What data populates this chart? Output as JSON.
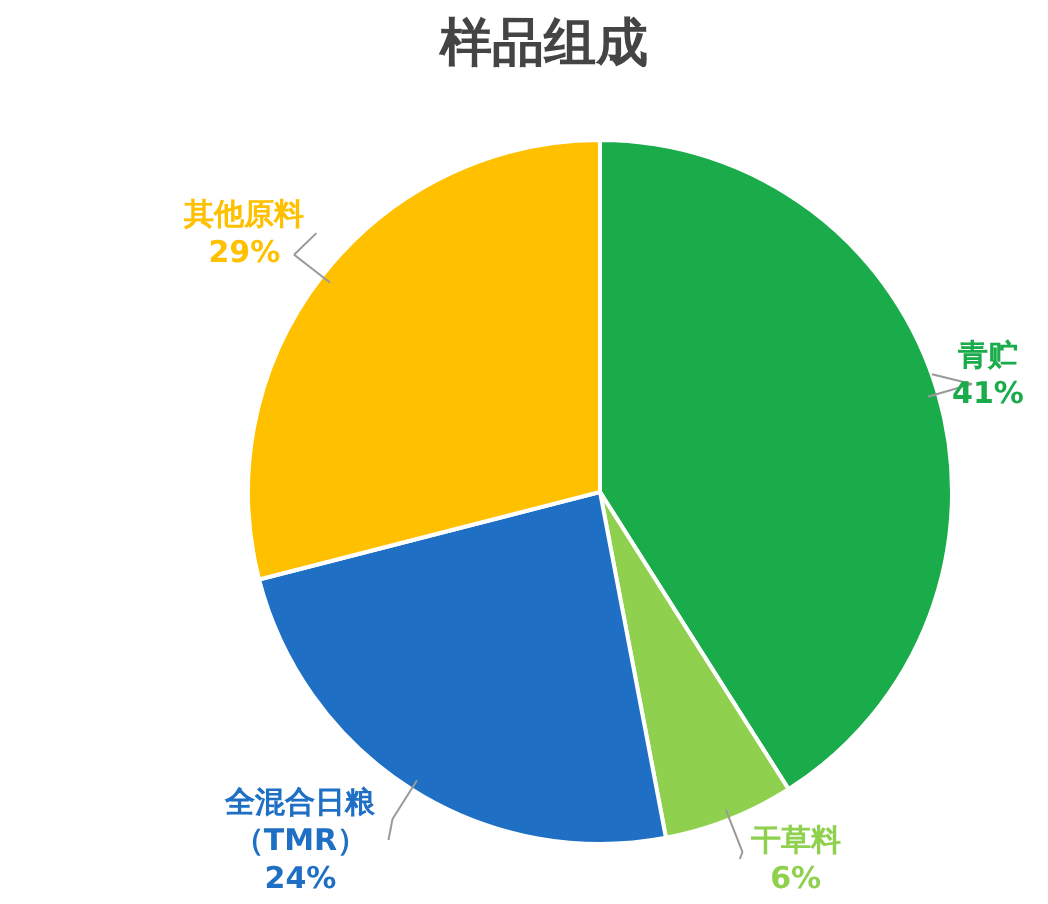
{
  "chart_data": {
    "type": "pie",
    "title": "样品组成",
    "categories": [
      "青贮",
      "干草料",
      "全混合日粮（TMR）",
      "其他原料"
    ],
    "values": [
      41,
      6,
      24,
      29
    ],
    "colors": [
      "#1aab4a",
      "#8fd14f",
      "#1f6fc4",
      "#ffc000"
    ],
    "value_labels": [
      "41%",
      "6%",
      "24%",
      "29%"
    ],
    "legend": false
  }
}
